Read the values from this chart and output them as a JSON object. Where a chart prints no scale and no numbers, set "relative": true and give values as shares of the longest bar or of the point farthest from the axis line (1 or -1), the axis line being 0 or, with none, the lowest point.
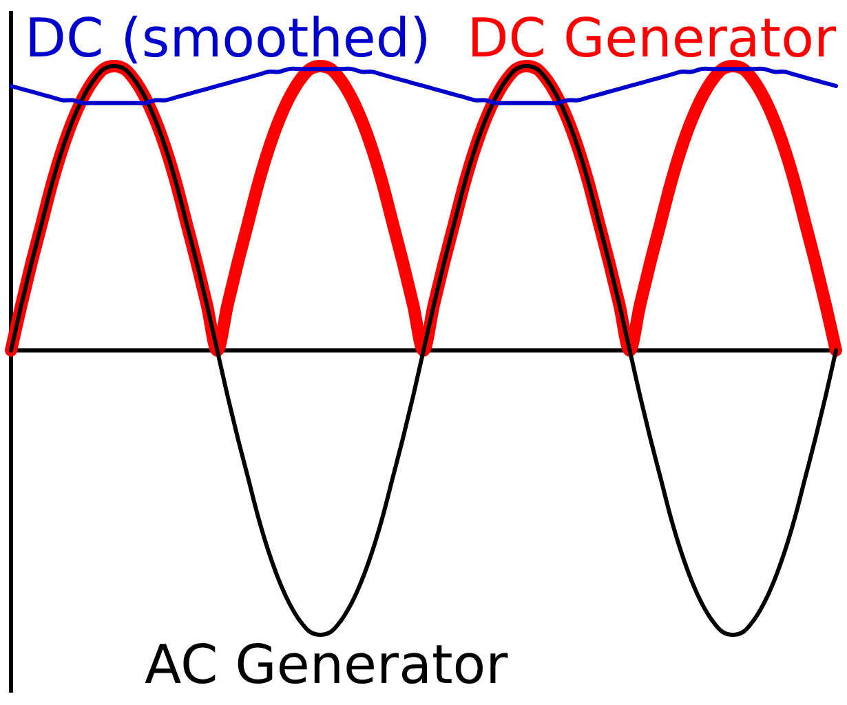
{
  "chart_data": {
    "type": "line",
    "relative": true,
    "categories": [
      null,
      null,
      null,
      null,
      null,
      null,
      null,
      null,
      null,
      null,
      null,
      null,
      null,
      null,
      null,
      null,
      null,
      null,
      null,
      null,
      null,
      null,
      null,
      null,
      null,
      null,
      null,
      null,
      null,
      null,
      null,
      null,
      null,
      null,
      null,
      null,
      null,
      null,
      null,
      null,
      null,
      null,
      null,
      null,
      null,
      null,
      null,
      null,
      null,
      null,
      null,
      null,
      null,
      null,
      null,
      null,
      null,
      null,
      null,
      null,
      null,
      null,
      null,
      null,
      null,
      null,
      null,
      null,
      null,
      null,
      null,
      null,
      null,
      null,
      null,
      null,
      null,
      null,
      null,
      null,
      null
    ],
    "series": [
      {
        "name": "DC Generator",
        "color": "#ff0000",
        "values": [
          0,
          0.16,
          0.31,
          0.45,
          0.59,
          0.71,
          0.81,
          0.89,
          0.95,
          0.99,
          1,
          0.99,
          0.95,
          0.89,
          0.81,
          0.71,
          0.59,
          0.45,
          0.31,
          0.16,
          0,
          0.16,
          0.31,
          0.45,
          0.59,
          0.71,
          0.81,
          0.89,
          0.95,
          0.99,
          1,
          0.99,
          0.95,
          0.89,
          0.81,
          0.71,
          0.59,
          0.45,
          0.31,
          0.16,
          0,
          0.16,
          0.31,
          0.45,
          0.59,
          0.71,
          0.81,
          0.89,
          0.95,
          0.99,
          1,
          0.99,
          0.95,
          0.89,
          0.81,
          0.71,
          0.59,
          0.45,
          0.31,
          0.16,
          0,
          0.16,
          0.31,
          0.45,
          0.59,
          0.71,
          0.81,
          0.89,
          0.95,
          0.99,
          1,
          0.99,
          0.95,
          0.89,
          0.81,
          0.71,
          0.59,
          0.45,
          0.31,
          0.16,
          0
        ]
      },
      {
        "name": "AC Generator",
        "color": "#000000",
        "values": [
          0,
          0.16,
          0.31,
          0.45,
          0.59,
          0.71,
          0.81,
          0.89,
          0.95,
          0.99,
          1,
          0.99,
          0.95,
          0.89,
          0.81,
          0.71,
          0.59,
          0.45,
          0.31,
          0.16,
          0,
          -0.16,
          -0.31,
          -0.45,
          -0.59,
          -0.71,
          -0.81,
          -0.89,
          -0.95,
          -0.99,
          -1,
          -0.99,
          -0.95,
          -0.89,
          -0.81,
          -0.71,
          -0.59,
          -0.45,
          -0.31,
          -0.16,
          0,
          0.16,
          0.31,
          0.45,
          0.59,
          0.71,
          0.81,
          0.89,
          0.95,
          0.99,
          1,
          0.99,
          0.95,
          0.89,
          0.81,
          0.71,
          0.59,
          0.45,
          0.31,
          0.16,
          0,
          -0.16,
          -0.31,
          -0.45,
          -0.59,
          -0.71,
          -0.81,
          -0.89,
          -0.95,
          -0.99,
          -1,
          -0.99,
          -0.95,
          -0.89,
          -0.81,
          -0.71,
          -0.59,
          -0.45,
          -0.31,
          -0.16,
          0
        ]
      },
      {
        "name": "DC (smoothed)",
        "color": "#0000cc",
        "values": [
          0.93,
          0.92,
          0.91,
          0.9,
          0.89,
          0.88,
          0.88,
          0.87,
          0.87,
          0.87,
          0.87,
          0.87,
          0.87,
          0.87,
          0.88,
          0.88,
          0.89,
          0.9,
          0.91,
          0.92,
          0.93,
          0.94,
          0.95,
          0.96,
          0.97,
          0.98,
          0.98,
          0.99,
          0.99,
          0.99,
          0.99,
          0.99,
          0.99,
          0.99,
          0.98,
          0.98,
          0.97,
          0.96,
          0.95,
          0.94,
          0.93,
          0.92,
          0.91,
          0.9,
          0.89,
          0.88,
          0.88,
          0.87,
          0.87,
          0.87,
          0.87,
          0.87,
          0.87,
          0.87,
          0.88,
          0.88,
          0.89,
          0.9,
          0.91,
          0.92,
          0.93,
          0.94,
          0.95,
          0.96,
          0.97,
          0.98,
          0.98,
          0.99,
          0.99,
          0.99,
          0.99,
          0.99,
          0.99,
          0.99,
          0.98,
          0.98,
          0.97,
          0.96,
          0.95,
          0.94,
          0.93
        ]
      }
    ]
  }
}
